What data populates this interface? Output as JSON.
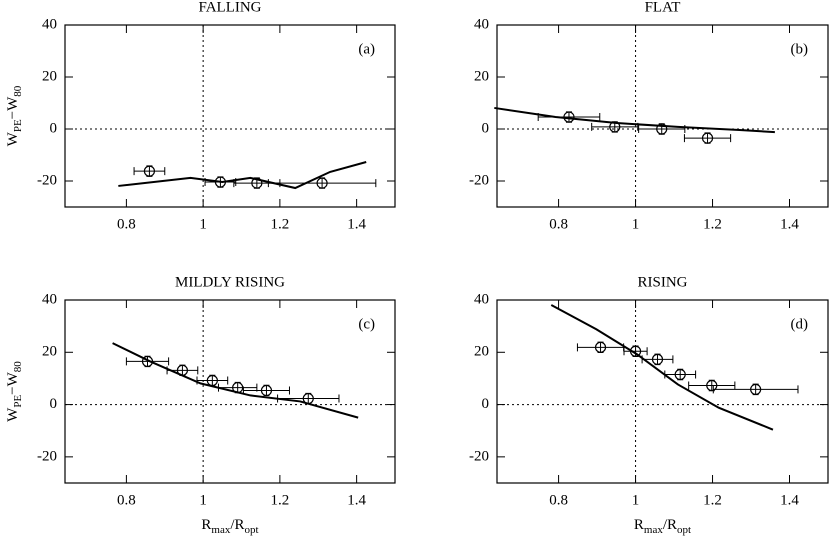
{
  "chart_data": [
    {
      "type": "scatter",
      "title": "FALLING",
      "panel_label": "(a)",
      "ylabel": [
        "W",
        "PE",
        "−W",
        "80"
      ],
      "xlim": [
        0.64,
        1.5
      ],
      "ylim": [
        -30,
        40
      ],
      "xticks": [
        0.8,
        1,
        1.2,
        1.4
      ],
      "yticks": [
        -20,
        0,
        20,
        40
      ],
      "reference_lines": {
        "x": 1,
        "y": 0
      },
      "points": {
        "x": [
          0.86,
          1.045,
          1.14,
          1.31
        ],
        "y": [
          -16.2,
          -20.4,
          -20.8,
          -20.8
        ],
        "xerr": [
          0.04,
          0.04,
          0.06,
          0.14
        ],
        "yerr": [
          2,
          2,
          2,
          2
        ]
      },
      "curve": {
        "x": [
          0.779,
          0.967,
          1.05,
          1.123,
          1.24,
          1.331,
          1.425
        ],
        "y": [
          -21.9,
          -18.8,
          -20.4,
          -18.8,
          -22.7,
          -16.5,
          -12.7
        ]
      }
    },
    {
      "type": "scatter",
      "title": "FLAT",
      "panel_label": "(b)",
      "xlim": [
        0.64,
        1.5
      ],
      "ylim": [
        -30,
        40
      ],
      "xticks": [
        0.8,
        1,
        1.2,
        1.4
      ],
      "yticks": [
        -20,
        0,
        20,
        40
      ],
      "reference_lines": {
        "x": 1,
        "y": 0
      },
      "points": {
        "x": [
          0.827,
          0.946,
          1.068,
          1.187
        ],
        "y": [
          4.6,
          0.8,
          0,
          -3.5
        ],
        "xerr": [
          0.08,
          0.06,
          0.06,
          0.06
        ],
        "yerr": [
          2,
          2,
          2,
          2
        ]
      },
      "curve": {
        "x": [
          0.633,
          0.792,
          0.951,
          1.11,
          1.27,
          1.362
        ],
        "y": [
          8.1,
          4.6,
          2.3,
          0.8,
          -0.4,
          -1.2
        ]
      }
    },
    {
      "type": "scatter",
      "title": "MILDLY RISING",
      "panel_label": "(c)",
      "ylabel": [
        "W",
        "PE",
        "−W",
        "80"
      ],
      "xlabel": [
        "R",
        "max",
        "/R",
        "opt"
      ],
      "xlim": [
        0.64,
        1.5
      ],
      "ylim": [
        -30,
        40
      ],
      "xticks": [
        0.8,
        1,
        1.2,
        1.4
      ],
      "yticks": [
        -20,
        0,
        20,
        40
      ],
      "reference_lines": {
        "x": 1,
        "y": 0
      },
      "points": {
        "x": [
          0.855,
          0.946,
          1.024,
          1.09,
          1.165,
          1.274
        ],
        "y": [
          16.5,
          13.1,
          9.2,
          6.5,
          5.4,
          2.3
        ],
        "xerr": [
          0.055,
          0.04,
          0.04,
          0.05,
          0.06,
          0.08
        ],
        "yerr": [
          2,
          2,
          2,
          2,
          2,
          2
        ]
      },
      "curve": {
        "x": [
          0.764,
          0.862,
          0.993,
          1.123,
          1.253,
          1.404
        ],
        "y": [
          23.5,
          16.5,
          8.1,
          3.5,
          1.2,
          -5.0
        ]
      }
    },
    {
      "type": "scatter",
      "title": "RISING",
      "panel_label": "(d)",
      "xlabel": [
        "R",
        "max",
        "/R",
        "opt"
      ],
      "xlim": [
        0.64,
        1.5
      ],
      "ylim": [
        -30,
        40
      ],
      "xticks": [
        0.8,
        1,
        1.2,
        1.4
      ],
      "yticks": [
        -20,
        0,
        20,
        40
      ],
      "reference_lines": {
        "x": 1,
        "y": 0
      },
      "points": {
        "x": [
          0.909,
          1.0,
          1.057,
          1.116,
          1.198,
          1.312
        ],
        "y": [
          21.9,
          20.4,
          17.3,
          11.5,
          7.3,
          5.8
        ],
        "xerr": [
          0.06,
          0.03,
          0.04,
          0.04,
          0.06,
          0.11
        ],
        "yerr": [
          2,
          2,
          2,
          2,
          2,
          2
        ]
      },
      "curve": {
        "x": [
          0.781,
          0.898,
          1.004,
          1.11,
          1.216,
          1.357
        ],
        "y": [
          38.1,
          28.8,
          19.2,
          7.7,
          -1.2,
          -9.6
        ]
      }
    }
  ]
}
